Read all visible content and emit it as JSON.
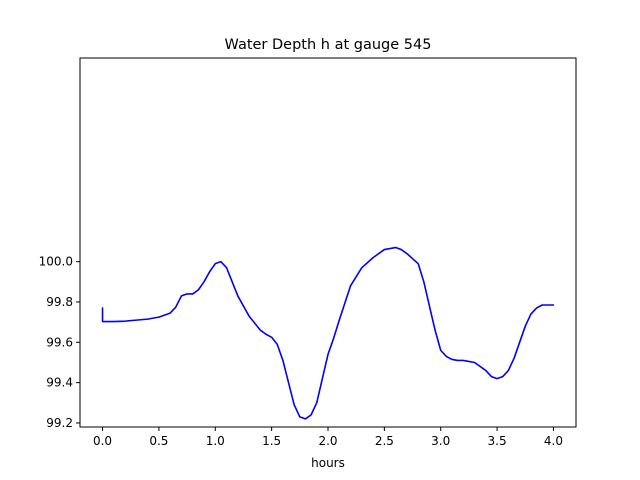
{
  "chart_data": {
    "type": "line",
    "title": "Water Depth h at gauge 545",
    "xlabel": "hours",
    "ylabel": "",
    "xlim": [
      -0.2,
      4.2
    ],
    "ylim": [
      99.18,
      101.01
    ],
    "x_ticks": [
      0.0,
      0.5,
      1.0,
      1.5,
      2.0,
      2.5,
      3.0,
      3.5,
      4.0
    ],
    "x_tick_labels": [
      "0.0",
      "0.5",
      "1.0",
      "1.5",
      "2.0",
      "2.5",
      "3.0",
      "3.5",
      "4.0"
    ],
    "y_ticks": [
      99.2,
      99.4,
      99.6,
      99.8,
      100.0
    ],
    "y_tick_labels": [
      "99.2",
      "99.4",
      "99.6",
      "99.8",
      "100.0"
    ],
    "grid": false,
    "series": [
      {
        "color": "#0000ff",
        "x": [
          0.0,
          0.0,
          0.1,
          0.2,
          0.3,
          0.4,
          0.5,
          0.6,
          0.65,
          0.7,
          0.75,
          0.8,
          0.85,
          0.9,
          0.95,
          1.0,
          1.05,
          1.1,
          1.15,
          1.2,
          1.3,
          1.4,
          1.45,
          1.5,
          1.55,
          1.6,
          1.65,
          1.7,
          1.75,
          1.8,
          1.85,
          1.9,
          1.95,
          2.0,
          2.05,
          2.1,
          2.2,
          2.3,
          2.4,
          2.5,
          2.6,
          2.65,
          2.7,
          2.8,
          2.85,
          2.9,
          2.95,
          3.0,
          3.05,
          3.1,
          3.15,
          3.2,
          3.3,
          3.35,
          3.4,
          3.45,
          3.5,
          3.55,
          3.6,
          3.65,
          3.7,
          3.75,
          3.8,
          3.85,
          3.9,
          3.95,
          4.0
        ],
        "y": [
          99.77,
          99.703,
          99.703,
          99.705,
          99.71,
          99.715,
          99.725,
          99.745,
          99.775,
          99.83,
          99.84,
          99.84,
          99.86,
          99.9,
          99.95,
          99.99,
          100.0,
          99.97,
          99.9,
          99.83,
          99.73,
          99.66,
          99.64,
          99.625,
          99.59,
          99.51,
          99.4,
          99.29,
          99.23,
          99.22,
          99.24,
          99.3,
          99.42,
          99.54,
          99.62,
          99.71,
          99.88,
          99.97,
          100.02,
          100.06,
          100.07,
          100.06,
          100.04,
          99.99,
          99.9,
          99.78,
          99.66,
          99.56,
          99.53,
          99.515,
          99.51,
          99.51,
          99.5,
          99.48,
          99.46,
          99.43,
          99.42,
          99.43,
          99.46,
          99.52,
          99.6,
          99.68,
          99.74,
          99.77,
          99.785,
          99.785,
          99.785
        ]
      }
    ]
  }
}
